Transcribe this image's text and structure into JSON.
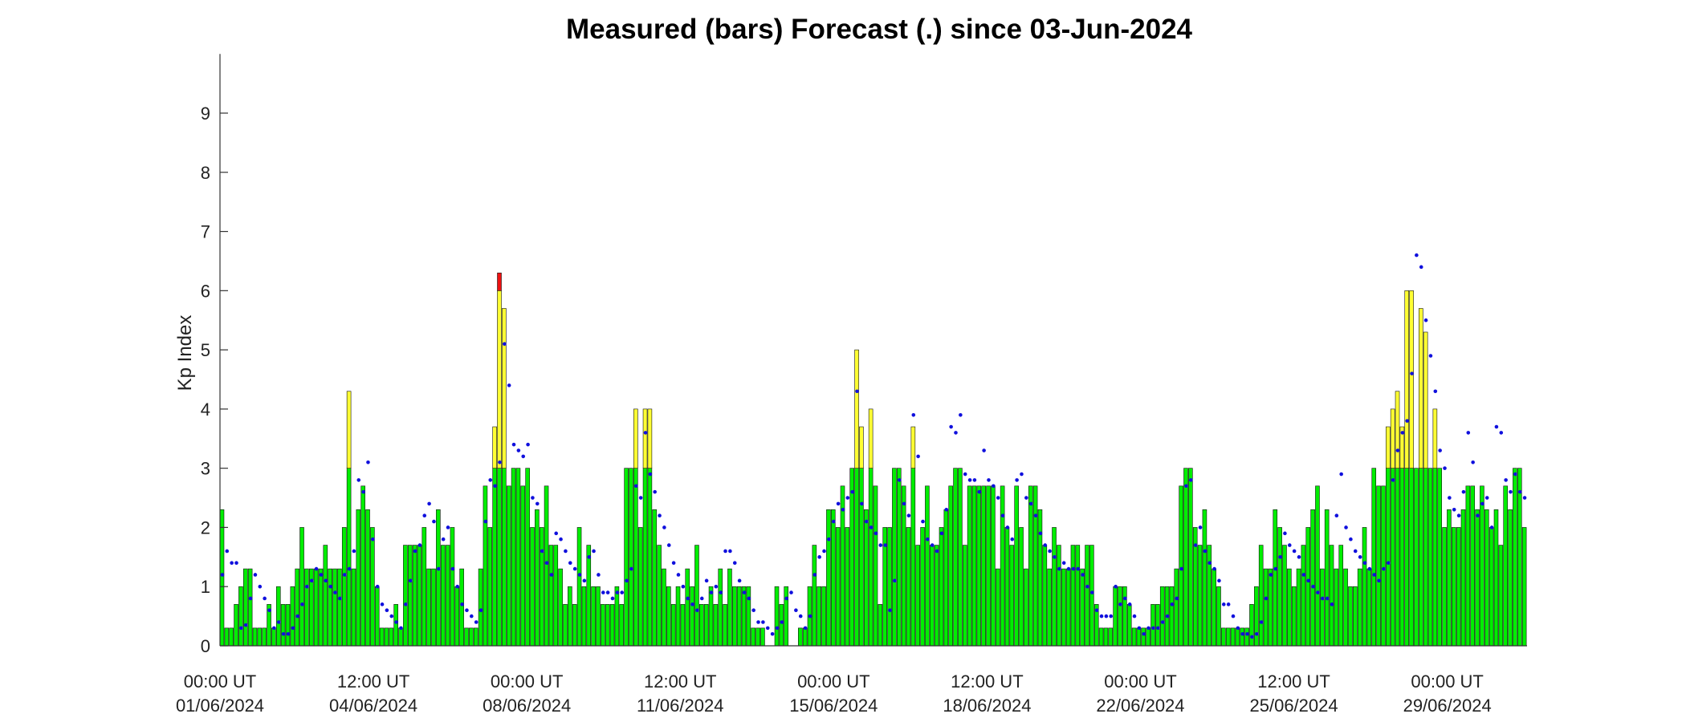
{
  "chart_data": {
    "type": "bar",
    "title": "Measured (bars) Forecast (.) since 03-Jun-2024",
    "ylabel": "Kp Index",
    "xlabel": "",
    "ylim": [
      0,
      10
    ],
    "y_ticks": [
      "0",
      "1",
      "2",
      "3",
      "4",
      "5",
      "6",
      "7",
      "8",
      "9"
    ],
    "x_ticks": [
      {
        "line1": "00:00 UT",
        "line2": "01/06/2024"
      },
      {
        "line1": "12:00 UT",
        "line2": "04/06/2024"
      },
      {
        "line1": "00:00 UT",
        "line2": "08/06/2024"
      },
      {
        "line1": "12:00 UT",
        "line2": "11/06/2024"
      },
      {
        "line1": "00:00 UT",
        "line2": "15/06/2024"
      },
      {
        "line1": "12:00 UT",
        "line2": "18/06/2024"
      },
      {
        "line1": "00:00 UT",
        "line2": "22/06/2024"
      },
      {
        "line1": "12:00 UT",
        "line2": "25/06/2024"
      },
      {
        "line1": "00:00 UT",
        "line2": "29/06/2024"
      }
    ],
    "interval_hours": 3,
    "bar_thresholds": {
      "yellow_from": 3.34,
      "red_from": 6
    },
    "colors": {
      "low": "#00ee00",
      "mid": "#ffff33",
      "high": "#ee1111",
      "forecast": "#1010dd",
      "bar_edge": "#111111"
    },
    "measured": [
      2.3,
      0.3,
      0.3,
      0.7,
      1,
      1.3,
      1.3,
      0.3,
      0.3,
      0.3,
      0.7,
      0.3,
      1,
      0.7,
      0.7,
      1,
      1.3,
      2,
      1.3,
      1.3,
      1.3,
      1.3,
      1.7,
      1.3,
      1.3,
      1.3,
      2,
      4.3,
      1.3,
      2.3,
      2.7,
      2.3,
      2,
      1,
      0.3,
      0.3,
      0.3,
      0.7,
      0.3,
      1.7,
      1.7,
      1.7,
      1.7,
      2,
      1.3,
      1.3,
      2.3,
      1.7,
      1.7,
      2,
      1,
      1.3,
      0.3,
      0.3,
      0.3,
      1.3,
      2.7,
      2,
      3.7,
      6.3,
      5.7,
      2.7,
      3,
      3,
      2.7,
      3.3,
      2,
      2.3,
      2,
      2.7,
      1.7,
      1.7,
      1.3,
      0.7,
      1,
      0.7,
      2,
      1,
      1.7,
      1,
      1,
      0.7,
      0.7,
      0.7,
      1,
      0.7,
      3.3,
      3.3,
      4,
      2,
      4,
      4,
      2.3,
      1.7,
      1.3,
      1,
      0.7,
      1,
      0.7,
      1.3,
      1,
      1.7,
      0.7,
      0.7,
      1,
      0.7,
      1.3,
      0.7,
      1.3,
      1,
      1,
      1,
      1,
      0.3,
      0.3,
      0.3,
      0,
      0,
      1,
      0.7,
      1,
      0,
      0,
      0.3,
      0.3,
      1,
      1.7,
      1,
      1,
      2.3,
      2.3,
      2,
      2.7,
      2,
      3,
      5,
      3.7,
      2.3,
      4,
      2.7,
      0.7,
      2,
      2,
      3.3,
      3,
      2.7,
      2,
      3.7,
      1.7,
      2,
      2.7,
      1.7,
      1.7,
      2,
      2.3,
      2.7,
      3,
      3.3,
      1.7,
      2.7,
      2.7,
      2.7,
      2.7,
      2.7,
      2.7,
      1.3,
      2.7,
      2,
      1.7,
      2.7,
      2,
      1.3,
      2.7,
      2.7,
      2.3,
      1.7,
      1.3,
      2,
      1.7,
      1.3,
      1.3,
      1.7,
      1.7,
      1.3,
      1.7,
      1.7,
      0.7,
      0.3,
      0.3,
      0.3,
      1,
      1,
      1,
      0.7,
      0.3,
      0.3,
      0.3,
      0.3,
      0.7,
      0.7,
      1,
      1,
      1,
      1.3,
      2.7,
      3.3,
      3.3,
      2,
      1.7,
      2.3,
      1.7,
      1.3,
      1,
      0.3,
      0.3,
      0.3,
      0.3,
      0.3,
      0.3,
      0.7,
      1,
      1.7,
      1.3,
      1.3,
      2.3,
      2,
      1.7,
      1.3,
      1,
      1.3,
      1.7,
      2,
      2.3,
      2.7,
      1.3,
      2.3,
      1.7,
      1.3,
      1.7,
      1.3,
      1,
      1,
      1.3,
      2,
      1.3,
      3,
      2.7,
      2.7,
      3.7,
      4,
      4.3,
      3.7,
      6,
      6,
      3,
      5.7,
      5.3,
      3,
      4,
      3,
      2,
      2.3,
      2,
      2,
      2.3,
      2.7,
      2.7,
      2.3,
      2.7,
      2.3,
      2,
      2.3,
      1.7,
      2.7,
      2.3,
      3,
      3.3,
      2
    ],
    "forecast": [
      1.2,
      1.6,
      1.4,
      1.4,
      0.3,
      0.35,
      0.8,
      1.2,
      1,
      0.8,
      0.6,
      0.3,
      0.4,
      0.2,
      0.2,
      0.3,
      0.5,
      0.7,
      1,
      1.1,
      1.3,
      1.2,
      1.1,
      1,
      0.9,
      0.8,
      1.2,
      1.3,
      1.6,
      2.8,
      2.6,
      3.1,
      1.8,
      1,
      0.7,
      0.6,
      0.5,
      0.4,
      0.3,
      0.7,
      1.1,
      1.6,
      1.7,
      2.2,
      2.4,
      2.1,
      1.3,
      1.8,
      2,
      1.3,
      1,
      0.7,
      0.6,
      0.5,
      0.4,
      0.6,
      2.1,
      2.8,
      2.7,
      3.1,
      5.1,
      4.4,
      3.4,
      3.3,
      3.2,
      3.4,
      2.5,
      2.4,
      1.6,
      1.4,
      1.2,
      1.9,
      1.8,
      1.6,
      1.4,
      1.3,
      1.2,
      1.1,
      1.5,
      1.6,
      1.2,
      0.9,
      0.9,
      0.8,
      0.9,
      0.9,
      1.1,
      1.3,
      2.7,
      2.5,
      3.6,
      2.9,
      2.6,
      2.2,
      2.0,
      1.7,
      1.4,
      1.2,
      1.0,
      0.8,
      0.7,
      0.6,
      0.8,
      1.1,
      0.9,
      1,
      0.9,
      1.6,
      1.6,
      1.4,
      1.1,
      0.9,
      0.8,
      0.6,
      0.4,
      0.4,
      0.3,
      0.2,
      0.3,
      0.4,
      0.8,
      0.9,
      0.6,
      0.5,
      0.3,
      0.5,
      1.2,
      1.5,
      1.6,
      1.8,
      2.1,
      2.4,
      2.3,
      2.5,
      2.6,
      4.3,
      2.4,
      2.1,
      2.0,
      1.9,
      1.7,
      1.7,
      0.6,
      1.1,
      2.8,
      2.4,
      2.2,
      3.9,
      3.2,
      2.1,
      1.8,
      1.7,
      1.6,
      1.9,
      2.3,
      3.7,
      3.6,
      3.9,
      2.9,
      2.8,
      2.8,
      2.6,
      3.3,
      2.8,
      2.7,
      2.5,
      2.2,
      2.0,
      1.8,
      2.8,
      2.9,
      2.5,
      2.4,
      2.2,
      1.9,
      1.7,
      1.6,
      1.5,
      1.3,
      1.4,
      1.3,
      1.3,
      1.3,
      1.2,
      1.0,
      0.9,
      0.6,
      0.5,
      0.5,
      0.5,
      1.0,
      0.7,
      0.8,
      0.7,
      0.5,
      0.3,
      0.2,
      0.3,
      0.3,
      0.3,
      0.4,
      0.5,
      0.7,
      0.8,
      1.3,
      2.7,
      2.8,
      1.7,
      2.0,
      1.6,
      1.4,
      1.3,
      1.1,
      0.7,
      0.7,
      0.5,
      0.3,
      0.2,
      0.2,
      0.15,
      0.2,
      0.4,
      0.8,
      1.2,
      1.3,
      1.5,
      1.9,
      1.7,
      1.6,
      1.5,
      1.2,
      1.1,
      1.0,
      0.9,
      0.8,
      0.8,
      0.7,
      2.2,
      2.9,
      2.0,
      1.8,
      1.6,
      1.5,
      1.4,
      1.3,
      1.2,
      1.1,
      1.3,
      1.4,
      2.8,
      3.3,
      3.6,
      3.8,
      4.6,
      6.6,
      6.4,
      5.5,
      4.9,
      4.3,
      3.3,
      3.0,
      2.5,
      2.3,
      2.2,
      2.6,
      3.6,
      3.1,
      2.2,
      2.4,
      2.5,
      2.0,
      3.7,
      3.6,
      2.8,
      2.6,
      2.9,
      2.6,
      2.5
    ]
  }
}
